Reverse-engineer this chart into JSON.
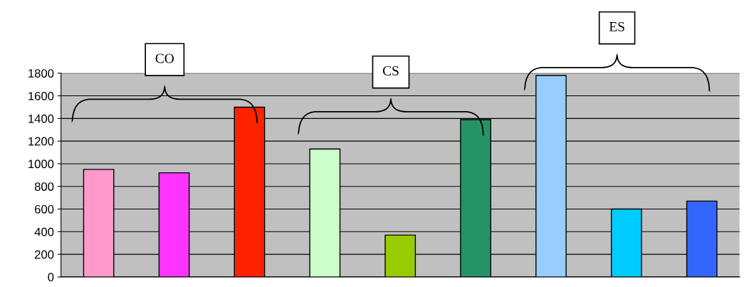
{
  "chart_data": {
    "type": "bar",
    "categories": [
      null,
      null,
      null,
      null,
      null,
      null,
      null,
      null,
      null
    ],
    "values": [
      950,
      920,
      1500,
      1130,
      370,
      1390,
      1780,
      600,
      670
    ],
    "colors": [
      "#ff99cc",
      "#ff33ff",
      "#ff2200",
      "#ccffcc",
      "#99cc00",
      "#259366",
      "#99ccff",
      "#00ccff",
      "#3366ff"
    ],
    "ylim": [
      0,
      1800
    ],
    "yticks": [
      0,
      200,
      400,
      600,
      800,
      1000,
      1200,
      1400,
      1600,
      1800
    ],
    "grid": "y",
    "annotations": [
      "CO",
      "CS",
      "ES"
    ]
  }
}
